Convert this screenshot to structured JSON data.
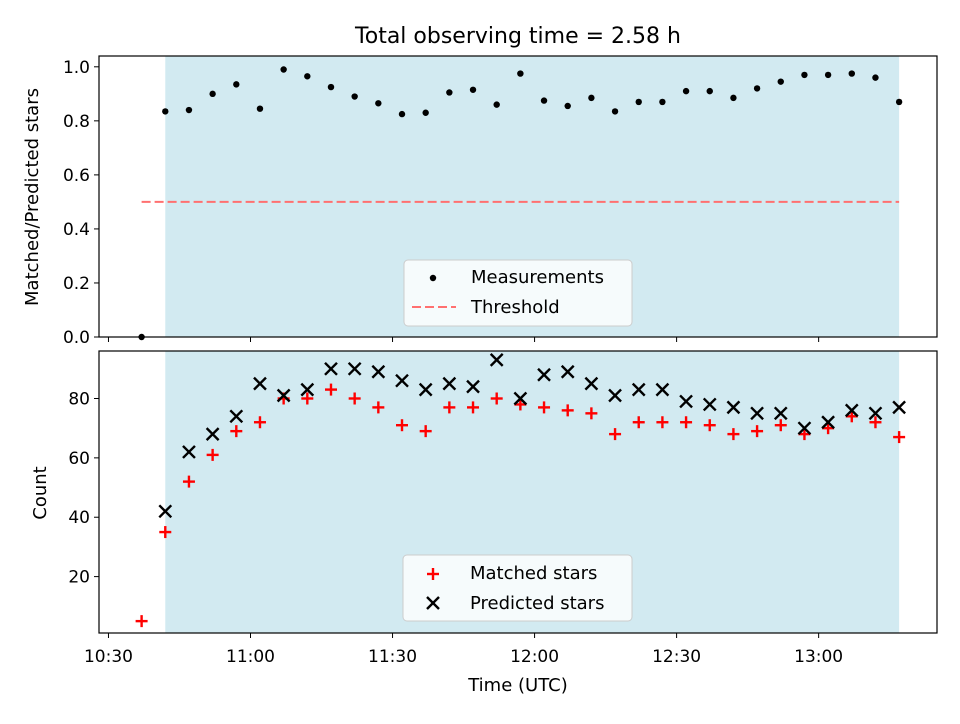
{
  "chart_data": [
    {
      "type": "scatter",
      "title": "Total observing time = 2.58 h",
      "ylabel": "Matched/Predicted stars",
      "xlabel": "",
      "xlim": [
        "10:28",
        "13:25"
      ],
      "ylim": [
        0,
        1.04
      ],
      "yticks": [
        "0.0",
        "0.2",
        "0.4",
        "0.6",
        "0.8",
        "1.0"
      ],
      "shaded_span": [
        "10:42",
        "13:17"
      ],
      "threshold": {
        "value": 0.5,
        "x_range": [
          "10:37",
          "13:17"
        ]
      },
      "legend": {
        "placement": "lower center",
        "entries": [
          "Measurements",
          "Threshold"
        ]
      },
      "colors": {
        "shade": "#add8e6",
        "threshold": "#ff7070",
        "points": "#000000"
      },
      "series": [
        {
          "name": "Measurements",
          "x": [
            "10:37",
            "10:42",
            "10:47",
            "10:52",
            "10:57",
            "11:02",
            "11:07",
            "11:12",
            "11:17",
            "11:22",
            "11:27",
            "11:32",
            "11:37",
            "11:42",
            "11:47",
            "11:52",
            "11:57",
            "12:02",
            "12:07",
            "12:12",
            "12:17",
            "12:22",
            "12:27",
            "12:32",
            "12:37",
            "12:42",
            "12:47",
            "12:52",
            "12:57",
            "13:02",
            "13:07",
            "13:12",
            "13:17"
          ],
          "values": [
            0.0,
            0.835,
            0.84,
            0.9,
            0.935,
            0.845,
            0.99,
            0.965,
            0.925,
            0.89,
            0.865,
            0.825,
            0.83,
            0.905,
            0.915,
            0.86,
            0.975,
            0.875,
            0.855,
            0.885,
            0.835,
            0.87,
            0.87,
            0.91,
            0.91,
            0.885,
            0.92,
            0.945,
            0.97,
            0.97,
            0.975,
            0.96,
            0.87
          ]
        }
      ]
    },
    {
      "type": "scatter",
      "title": "",
      "ylabel": "Count",
      "xlabel": "Time (UTC)",
      "xlim": [
        "10:28",
        "13:25"
      ],
      "ylim": [
        1,
        96
      ],
      "yticks": [
        "20",
        "40",
        "60",
        "80"
      ],
      "xticks": [
        "10:30",
        "11:00",
        "11:30",
        "12:00",
        "12:30",
        "13:00"
      ],
      "shaded_span": [
        "10:42",
        "13:17"
      ],
      "legend": {
        "placement": "lower center",
        "entries": [
          "Matched stars",
          "Predicted stars"
        ]
      },
      "colors": {
        "shade": "#add8e6",
        "matched": "#ff0000",
        "predicted": "#000000"
      },
      "series": [
        {
          "name": "Matched stars",
          "x": [
            "10:37",
            "10:42",
            "10:47",
            "10:52",
            "10:57",
            "11:02",
            "11:07",
            "11:12",
            "11:17",
            "11:22",
            "11:27",
            "11:32",
            "11:37",
            "11:42",
            "11:47",
            "11:52",
            "11:57",
            "12:02",
            "12:07",
            "12:12",
            "12:17",
            "12:22",
            "12:27",
            "12:32",
            "12:37",
            "12:42",
            "12:47",
            "12:52",
            "12:57",
            "13:02",
            "13:07",
            "13:12",
            "13:17"
          ],
          "values": [
            5,
            35,
            52,
            61,
            69,
            72,
            80,
            80,
            83,
            80,
            77,
            71,
            69,
            77,
            77,
            80,
            78,
            77,
            76,
            75,
            68,
            72,
            72,
            72,
            71,
            68,
            69,
            71,
            68,
            70,
            74,
            72,
            67
          ]
        },
        {
          "name": "Predicted stars",
          "x": [
            "10:42",
            "10:47",
            "10:52",
            "10:57",
            "11:02",
            "11:07",
            "11:12",
            "11:17",
            "11:22",
            "11:27",
            "11:32",
            "11:37",
            "11:42",
            "11:47",
            "11:52",
            "11:57",
            "12:02",
            "12:07",
            "12:12",
            "12:17",
            "12:22",
            "12:27",
            "12:32",
            "12:37",
            "12:42",
            "12:47",
            "12:52",
            "12:57",
            "13:02",
            "13:07",
            "13:12",
            "13:17"
          ],
          "values": [
            42,
            62,
            68,
            74,
            85,
            81,
            83,
            90,
            90,
            89,
            86,
            83,
            85,
            84,
            93,
            80,
            88,
            89,
            85,
            81,
            83,
            83,
            79,
            78,
            77,
            75,
            75,
            70,
            72,
            76,
            75,
            77
          ]
        }
      ]
    }
  ]
}
